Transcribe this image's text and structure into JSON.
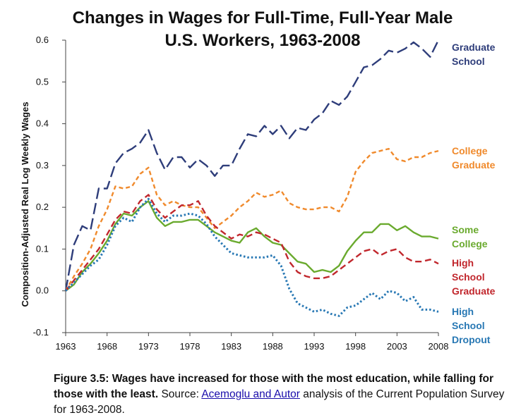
{
  "chart_data": {
    "type": "line",
    "title_lines": [
      "Changes in Wages for Full-Time, Full-Year Male",
      "U.S. Workers, 1963-2008"
    ],
    "xlabel": "",
    "ylabel": "Composition-Adjusted Real Log Weekly Wages",
    "xlim": [
      1963,
      2008
    ],
    "ylim": [
      -0.1,
      0.6
    ],
    "x_ticks": [
      1963,
      1968,
      1973,
      1978,
      1983,
      1988,
      1993,
      1998,
      2003,
      2008
    ],
    "x_tick_labels": [
      "1963",
      "1968",
      "1973",
      "1978",
      "1983",
      "1988",
      "1993",
      "1998",
      "2003",
      "2008"
    ],
    "y_ticks": [
      -0.1,
      0.0,
      0.1,
      0.2,
      0.3,
      0.4,
      0.5,
      0.6
    ],
    "y_tick_labels": [
      "-0.1",
      "0.0",
      "0.1",
      "0.2",
      "0.3",
      "0.4",
      "0.5",
      "0.6"
    ],
    "grid": false,
    "legend": "inline-right",
    "x": [
      1963,
      1964,
      1965,
      1966,
      1967,
      1968,
      1969,
      1970,
      1971,
      1972,
      1973,
      1974,
      1975,
      1976,
      1977,
      1978,
      1979,
      1980,
      1981,
      1982,
      1983,
      1984,
      1985,
      1986,
      1987,
      1988,
      1989,
      1990,
      1991,
      1992,
      1993,
      1994,
      1995,
      1996,
      1997,
      1998,
      1999,
      2000,
      2001,
      2002,
      2003,
      2004,
      2005,
      2006,
      2007,
      2008
    ],
    "series": [
      {
        "name_lines": [
          "Graduate",
          "School"
        ],
        "color": "#2e3d7a",
        "dash": "long-dash",
        "values": [
          0.0,
          0.11,
          0.155,
          0.145,
          0.245,
          0.245,
          0.305,
          0.33,
          0.34,
          0.355,
          0.385,
          0.33,
          0.29,
          0.32,
          0.32,
          0.295,
          0.315,
          0.3,
          0.275,
          0.3,
          0.3,
          0.34,
          0.375,
          0.37,
          0.395,
          0.375,
          0.395,
          0.365,
          0.39,
          0.385,
          0.41,
          0.425,
          0.455,
          0.445,
          0.465,
          0.5,
          0.535,
          0.54,
          0.555,
          0.575,
          0.57,
          0.58,
          0.595,
          0.58,
          0.56,
          0.6
        ]
      },
      {
        "name_lines": [
          "College",
          "Graduate"
        ],
        "color": "#f08a2c",
        "dash": "short-dash",
        "values": [
          0.0,
          0.035,
          0.065,
          0.1,
          0.155,
          0.195,
          0.25,
          0.245,
          0.25,
          0.28,
          0.295,
          0.23,
          0.205,
          0.215,
          0.205,
          0.2,
          0.2,
          0.175,
          0.15,
          0.165,
          0.18,
          0.2,
          0.215,
          0.235,
          0.225,
          0.23,
          0.24,
          0.21,
          0.2,
          0.195,
          0.195,
          0.2,
          0.2,
          0.19,
          0.225,
          0.285,
          0.31,
          0.33,
          0.335,
          0.34,
          0.315,
          0.31,
          0.32,
          0.32,
          0.33,
          0.335
        ]
      },
      {
        "name_lines": [
          "Some",
          "College"
        ],
        "color": "#6aaa2e",
        "dash": "solid",
        "values": [
          0.0,
          0.015,
          0.045,
          0.065,
          0.09,
          0.12,
          0.16,
          0.185,
          0.18,
          0.2,
          0.215,
          0.175,
          0.155,
          0.165,
          0.165,
          0.17,
          0.17,
          0.155,
          0.14,
          0.13,
          0.12,
          0.115,
          0.14,
          0.15,
          0.13,
          0.115,
          0.11,
          0.09,
          0.07,
          0.065,
          0.045,
          0.05,
          0.045,
          0.06,
          0.095,
          0.12,
          0.14,
          0.14,
          0.16,
          0.16,
          0.145,
          0.155,
          0.14,
          0.13,
          0.13,
          0.125
        ]
      },
      {
        "name_lines": [
          "High",
          "School",
          "Graduate"
        ],
        "color": "#c1272d",
        "dash": "medium-dash",
        "values": [
          0.0,
          0.025,
          0.05,
          0.075,
          0.1,
          0.135,
          0.17,
          0.19,
          0.185,
          0.215,
          0.23,
          0.195,
          0.175,
          0.19,
          0.205,
          0.205,
          0.215,
          0.18,
          0.155,
          0.14,
          0.125,
          0.135,
          0.13,
          0.14,
          0.135,
          0.125,
          0.115,
          0.07,
          0.045,
          0.035,
          0.03,
          0.03,
          0.035,
          0.05,
          0.065,
          0.08,
          0.095,
          0.1,
          0.085,
          0.095,
          0.1,
          0.08,
          0.07,
          0.07,
          0.075,
          0.065
        ]
      },
      {
        "name_lines": [
          "High",
          "School",
          "Dropout"
        ],
        "color": "#2878b4",
        "dash": "dotted",
        "values": [
          0.0,
          0.02,
          0.04,
          0.06,
          0.075,
          0.11,
          0.155,
          0.175,
          0.165,
          0.2,
          0.22,
          0.185,
          0.165,
          0.18,
          0.18,
          0.185,
          0.18,
          0.16,
          0.13,
          0.11,
          0.09,
          0.085,
          0.08,
          0.08,
          0.08,
          0.085,
          0.06,
          0.005,
          -0.03,
          -0.04,
          -0.05,
          -0.045,
          -0.055,
          -0.06,
          -0.04,
          -0.035,
          -0.02,
          -0.005,
          -0.02,
          -0.0,
          -0.005,
          -0.025,
          -0.015,
          -0.045,
          -0.045,
          -0.05
        ]
      }
    ]
  },
  "caption": {
    "figure_label": "Figure 3.5:",
    "headline": "Wages have increased for those with the most education, while falling for those with the least.",
    "source_prefix": "Source:",
    "source_link": "Acemoglu and Autor",
    "source_suffix": "analysis of the Current Population Survey for 1963-2008."
  }
}
